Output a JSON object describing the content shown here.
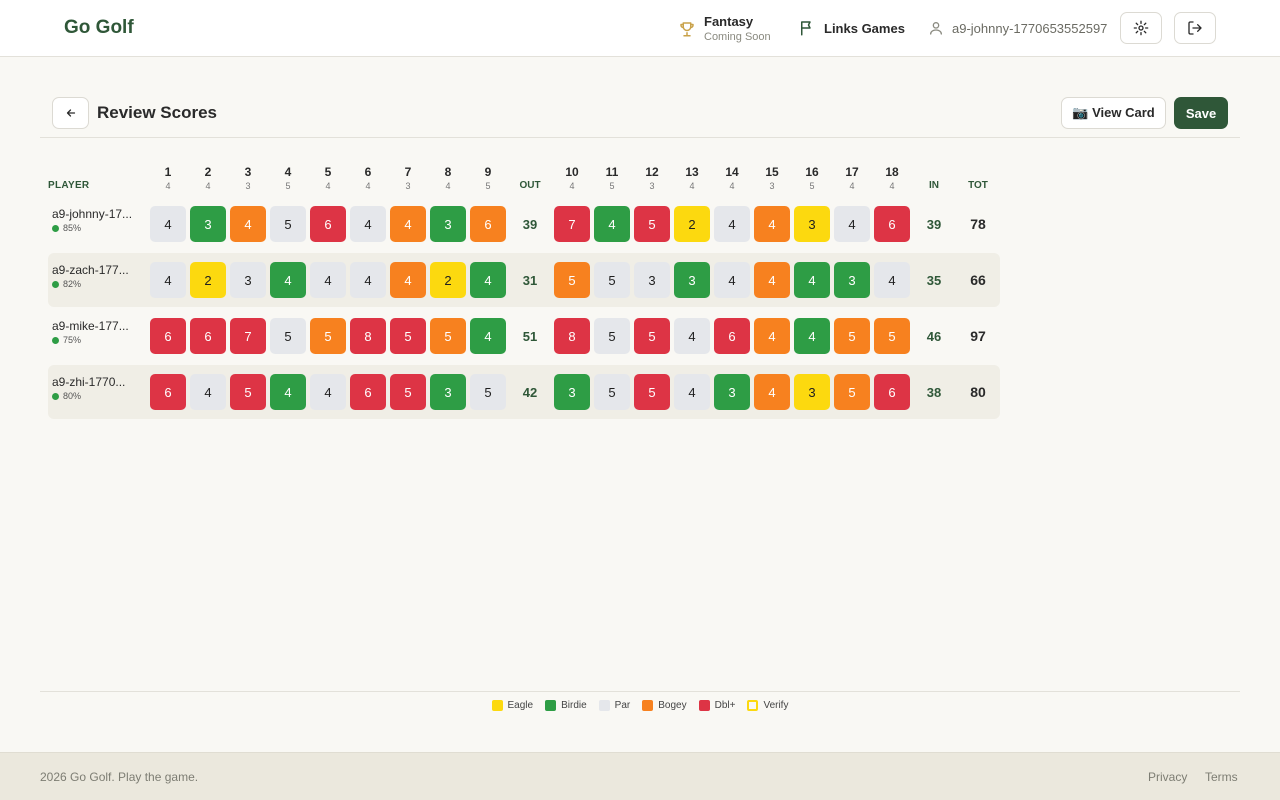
{
  "header": {
    "logo": "Go Golf",
    "fantasy": {
      "label": "Fantasy",
      "sublabel": "Coming Soon"
    },
    "links_games": "Links Games",
    "user": "a9-johnny-1770653552597"
  },
  "toolbar": {
    "title": "Review Scores",
    "view_card_label": "📷 View Card",
    "save_label": "Save"
  },
  "scorecard": {
    "player_header": "PLAYER",
    "out_label": "OUT",
    "in_label": "IN",
    "tot_label": "TOT",
    "holes": [
      {
        "num": "1",
        "par": 4
      },
      {
        "num": "2",
        "par": 4
      },
      {
        "num": "3",
        "par": 3
      },
      {
        "num": "4",
        "par": 5
      },
      {
        "num": "5",
        "par": 4
      },
      {
        "num": "6",
        "par": 4
      },
      {
        "num": "7",
        "par": 3
      },
      {
        "num": "8",
        "par": 4
      },
      {
        "num": "9",
        "par": 5
      },
      {
        "num": "10",
        "par": 4
      },
      {
        "num": "11",
        "par": 5
      },
      {
        "num": "12",
        "par": 3
      },
      {
        "num": "13",
        "par": 4
      },
      {
        "num": "14",
        "par": 4
      },
      {
        "num": "15",
        "par": 3
      },
      {
        "num": "16",
        "par": 5
      },
      {
        "num": "17",
        "par": 4
      },
      {
        "num": "18",
        "par": 4
      }
    ],
    "players": [
      {
        "name": "a9-johnny-17...",
        "pct": "85%",
        "scores": [
          4,
          3,
          4,
          5,
          6,
          4,
          4,
          3,
          6,
          7,
          4,
          5,
          2,
          4,
          4,
          3,
          4,
          6
        ],
        "out": "39",
        "in": "39",
        "tot": "78"
      },
      {
        "name": "a9-zach-177...",
        "pct": "82%",
        "scores": [
          4,
          2,
          3,
          4,
          4,
          4,
          4,
          2,
          4,
          5,
          5,
          3,
          3,
          4,
          4,
          4,
          3,
          4
        ],
        "out": "31",
        "in": "35",
        "tot": "66"
      },
      {
        "name": "a9-mike-177...",
        "pct": "75%",
        "scores": [
          6,
          6,
          7,
          5,
          5,
          8,
          5,
          5,
          4,
          8,
          5,
          5,
          4,
          6,
          4,
          4,
          5,
          5
        ],
        "out": "51",
        "in": "46",
        "tot": "97"
      },
      {
        "name": "a9-zhi-1770...",
        "pct": "80%",
        "scores": [
          6,
          4,
          5,
          4,
          4,
          6,
          5,
          3,
          5,
          3,
          5,
          5,
          4,
          3,
          4,
          3,
          5,
          6
        ],
        "out": "42",
        "in": "38",
        "tot": "80"
      }
    ],
    "score_classes": [
      [
        "par",
        "birdie",
        "bogey",
        "par",
        "dbl",
        "par",
        "bogey",
        "birdie",
        "bogey",
        "dbl",
        "birdie",
        "dbl",
        "eagle",
        "par",
        "bogey",
        "eagle",
        "par",
        "dbl"
      ],
      [
        "par",
        "eagle",
        "par",
        "birdie",
        "par",
        "par",
        "bogey",
        "eagle",
        "birdie",
        "bogey",
        "par",
        "par",
        "birdie",
        "par",
        "bogey",
        "birdie",
        "birdie",
        "par"
      ],
      [
        "dbl",
        "dbl",
        "dbl",
        "par",
        "bogey",
        "dbl",
        "dbl",
        "bogey",
        "birdie",
        "dbl",
        "par",
        "dbl",
        "par",
        "dbl",
        "bogey",
        "birdie",
        "bogey",
        "bogey"
      ],
      [
        "dbl",
        "par",
        "dbl",
        "birdie",
        "par",
        "dbl",
        "dbl",
        "birdie",
        "par",
        "birdie",
        "par",
        "dbl",
        "par",
        "birdie",
        "bogey",
        "eagle",
        "bogey",
        "dbl"
      ]
    ]
  },
  "legend": [
    {
      "label": "Eagle",
      "color": "#fcd90f"
    },
    {
      "label": "Birdie",
      "color": "#2e9d45"
    },
    {
      "label": "Par",
      "color": "#e5e7eb"
    },
    {
      "label": "Bogey",
      "color": "#f7811f"
    },
    {
      "label": "Dbl+",
      "color": "#dd3445"
    },
    {
      "label": "Verify",
      "color": "#fcd90f"
    }
  ],
  "footer": {
    "copyright": "2026 Go Golf. Play the game.",
    "privacy": "Privacy",
    "terms": "Terms"
  }
}
